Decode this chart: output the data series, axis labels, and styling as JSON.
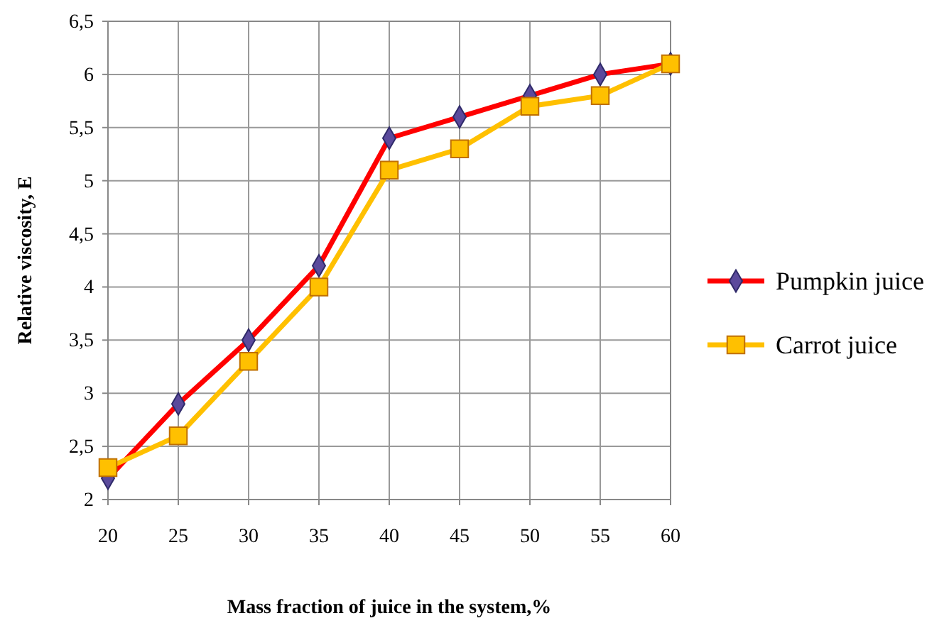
{
  "chart_data": {
    "type": "line",
    "xlabel": "Mass fraction  of juice in the system,%",
    "ylabel": "Relative viscosity,  E",
    "x": [
      20,
      25,
      30,
      35,
      40,
      45,
      50,
      55,
      60
    ],
    "xlim": [
      20,
      60
    ],
    "xticks": [
      20,
      25,
      30,
      35,
      40,
      45,
      50,
      55,
      60
    ],
    "ylim": [
      2,
      6.5
    ],
    "yticks": [
      2,
      {
        "value": 2.5,
        "label": "2,5"
      },
      3,
      {
        "value": 3.5,
        "label": "3,5"
      },
      4,
      {
        "value": 4.5,
        "label": "4,5"
      },
      5,
      {
        "value": 5.5,
        "label": "5,5"
      },
      6,
      {
        "value": 6.5,
        "label": "6,5"
      }
    ],
    "grid": true,
    "legend": "right",
    "line_style": "solid",
    "series": [
      {
        "name": "Pumpkin juice",
        "color": "#ff0000",
        "marker": "diamond",
        "values": [
          2.2,
          2.9,
          3.5,
          4.2,
          5.4,
          5.6,
          5.8,
          6.0,
          6.1
        ]
      },
      {
        "name": "Carrot juice",
        "color": "#ffc000",
        "marker": "square",
        "values": [
          2.3,
          2.6,
          3.3,
          4.0,
          5.1,
          5.3,
          5.7,
          5.8,
          6.1
        ]
      }
    ]
  }
}
